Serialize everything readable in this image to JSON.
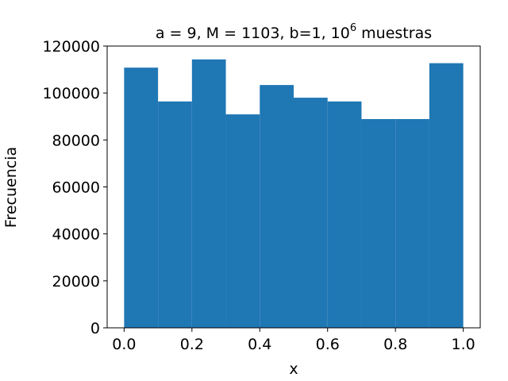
{
  "chart_data": {
    "type": "bar",
    "title": "a = 9, M = 1103, b=1, 10",
    "title_superscript": "6",
    "title_suffix": " muestras",
    "xlabel": "x",
    "ylabel": "Frecuencia",
    "xlim": [
      -0.05,
      1.05
    ],
    "ylim": [
      0,
      120000
    ],
    "xticks": [
      0.0,
      0.2,
      0.4,
      0.6,
      0.8,
      1.0
    ],
    "xtick_labels": [
      "0.0",
      "0.2",
      "0.4",
      "0.6",
      "0.8",
      "1.0"
    ],
    "yticks": [
      0,
      20000,
      40000,
      60000,
      80000,
      100000,
      120000
    ],
    "ytick_labels": [
      "0",
      "20000",
      "40000",
      "60000",
      "80000",
      "100000",
      "120000"
    ],
    "bin_edges": [
      0.0,
      0.1,
      0.2,
      0.3,
      0.4,
      0.5,
      0.6,
      0.7,
      0.8,
      0.9,
      1.0
    ],
    "values": [
      110800,
      96400,
      114300,
      90900,
      103400,
      98000,
      96400,
      88900,
      88900,
      112700
    ],
    "bar_color": "#1f77b4",
    "grid": false
  }
}
